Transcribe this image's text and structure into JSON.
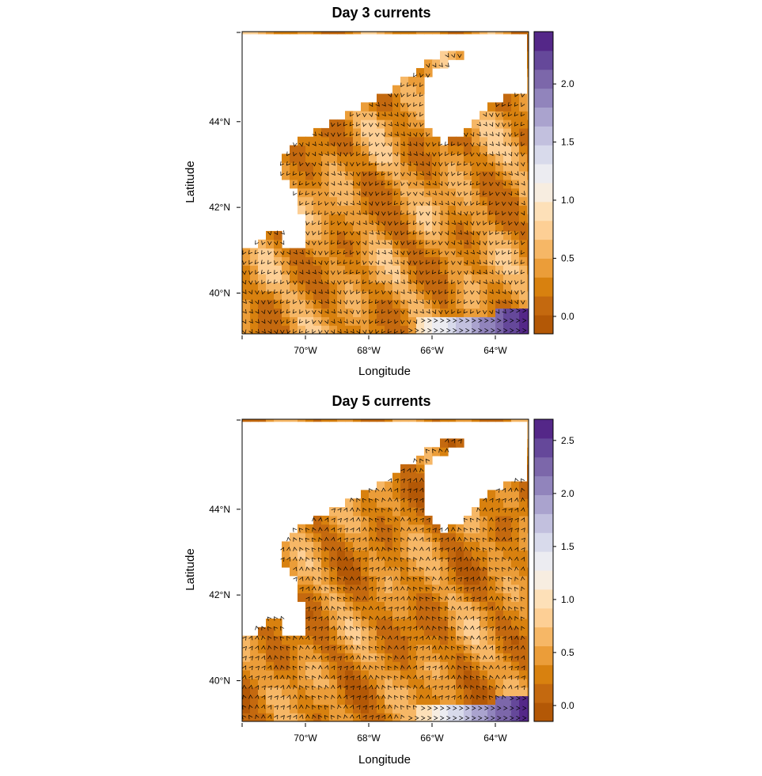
{
  "colors": {
    "ramp": [
      "#b35806",
      "#c4690f",
      "#d8810f",
      "#eb9d39",
      "#f6b766",
      "#fdcf95",
      "#fde0b8",
      "#f7ede0",
      "#ececf1",
      "#d8daeb",
      "#c2c0de",
      "#aaa3ce",
      "#9184bc",
      "#7c67aa",
      "#65489a",
      "#542788"
    ],
    "land": "#ffffff",
    "arrow": "#000000"
  },
  "chart_data": [
    {
      "type": "heatmap",
      "title": "Day 3 currents",
      "xlabel": "Longitude",
      "ylabel": "Latitude",
      "x_ticks": [
        -70,
        -68,
        -66,
        -64
      ],
      "x_tick_labels": [
        "70°W",
        "68°W",
        "66°W",
        "64°W"
      ],
      "y_ticks": [
        40,
        42,
        44
      ],
      "y_tick_labels": [
        "40°N",
        "42°N",
        "44°N"
      ],
      "xlim": [
        -72.0,
        -62.95
      ],
      "ylim": [
        39.05,
        46.1
      ],
      "colorbar": {
        "range": [
          -0.15,
          2.45
        ],
        "ticks": [
          0.0,
          0.5,
          1.0,
          1.5,
          2.0
        ],
        "tick_labels": [
          "0.0",
          "0.5",
          "1.0",
          "1.5",
          "2.0"
        ],
        "levels": 16
      },
      "current_direction": "south",
      "gulf_stream_max": 2.4
    },
    {
      "type": "heatmap",
      "title": "Day 5 currents",
      "xlabel": "Longitude",
      "ylabel": "Latitude",
      "x_ticks": [
        -70,
        -68,
        -66,
        -64
      ],
      "x_tick_labels": [
        "70°W",
        "68°W",
        "66°W",
        "64°W"
      ],
      "y_ticks": [
        40,
        42,
        44
      ],
      "y_tick_labels": [
        "40°N",
        "42°N",
        "44°N"
      ],
      "xlim": [
        -72.0,
        -62.95
      ],
      "ylim": [
        39.05,
        46.1
      ],
      "colorbar": {
        "range": [
          -0.15,
          2.7
        ],
        "ticks": [
          0.0,
          0.5,
          1.0,
          1.5,
          2.0,
          2.5
        ],
        "tick_labels": [
          "0.0",
          "0.5",
          "1.0",
          "1.5",
          "2.0",
          "2.5"
        ],
        "levels": 16
      },
      "current_direction": "north",
      "gulf_stream_max": 2.65
    }
  ]
}
